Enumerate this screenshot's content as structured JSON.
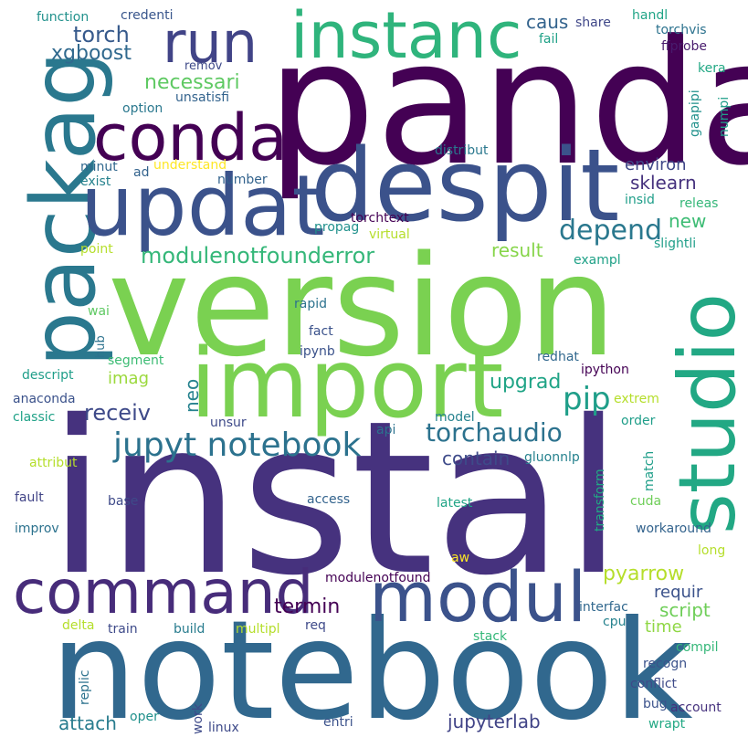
{
  "colors": {
    "background": "#ffffff",
    "palette": [
      "#440154",
      "#482878",
      "#3e4989",
      "#31688e",
      "#26828e",
      "#1f9e89",
      "#35b779",
      "#6ece58",
      "#b5de2b",
      "#fde725"
    ]
  },
  "words": [
    {
      "text": "instal",
      "color": "#46327e"
    },
    {
      "text": "version",
      "color": "#7ad151"
    },
    {
      "text": "panda",
      "color": "#440154"
    },
    {
      "text": "notebook",
      "color": "#31688e"
    },
    {
      "text": "despit",
      "color": "#3b528b"
    },
    {
      "text": "import",
      "color": "#7ad151"
    },
    {
      "text": "packag",
      "color": "#2a788e"
    },
    {
      "text": "updat",
      "color": "#3b528b"
    },
    {
      "text": "studio",
      "color": "#22a884"
    },
    {
      "text": "command",
      "color": "#472c7a"
    },
    {
      "text": "modul",
      "color": "#3b528b"
    },
    {
      "text": "instanc",
      "color": "#2fb47c"
    },
    {
      "text": "conda",
      "color": "#440154"
    },
    {
      "text": "run",
      "color": "#414487"
    },
    {
      "text": "jupyt notebook",
      "color": "#2c728e"
    },
    {
      "text": "pip",
      "color": "#1f9e89"
    },
    {
      "text": "depend",
      "color": "#2a788e"
    },
    {
      "text": "torchaudio",
      "color": "#2c728e"
    },
    {
      "text": "modulenotfounderror",
      "color": "#35b779"
    },
    {
      "text": "torch",
      "color": "#375a8c"
    },
    {
      "text": "xgboost",
      "color": "#30698e"
    },
    {
      "text": "necessari",
      "color": "#5ec962"
    },
    {
      "text": "pyarrow",
      "color": "#b5de2b"
    },
    {
      "text": "receiv",
      "color": "#3e4a89"
    },
    {
      "text": "termin",
      "color": "#440154"
    },
    {
      "text": "upgrad",
      "color": "#20a486"
    },
    {
      "text": "contain",
      "color": "#3e4a89"
    },
    {
      "text": "jupyterlab",
      "color": "#414487"
    },
    {
      "text": "attach",
      "color": "#287c8e"
    },
    {
      "text": "environ",
      "color": "#3f4788"
    },
    {
      "text": "sklearn",
      "color": "#46327e"
    },
    {
      "text": "script",
      "color": "#6ece58"
    },
    {
      "text": "result",
      "color": "#86d549"
    },
    {
      "text": "caus",
      "color": "#33638d"
    },
    {
      "text": "new",
      "color": "#3dbc74"
    },
    {
      "text": "time",
      "color": "#8fd744"
    },
    {
      "text": "requir",
      "color": "#3b528b"
    },
    {
      "text": "imag",
      "color": "#9bd93c"
    },
    {
      "text": "neo",
      "color": "#26828e"
    },
    {
      "text": "torchvis",
      "color": "#2c728e"
    },
    {
      "text": "ffprobe",
      "color": "#481b6d"
    },
    {
      "text": "handl",
      "color": "#20a486"
    },
    {
      "text": "share",
      "color": "#3f4788"
    },
    {
      "text": "fail",
      "color": "#1fa187"
    },
    {
      "text": "kera",
      "color": "#22a884"
    },
    {
      "text": "numpi",
      "color": "#1f9e89"
    },
    {
      "text": "gaapipi",
      "color": "#21918c"
    },
    {
      "text": "function",
      "color": "#21918c"
    },
    {
      "text": "credenti",
      "color": "#39568c"
    },
    {
      "text": "remov",
      "color": "#3e4a89"
    },
    {
      "text": "unsatisfi",
      "color": "#33638d"
    },
    {
      "text": "option",
      "color": "#2a788e"
    },
    {
      "text": "minut",
      "color": "#31688e"
    },
    {
      "text": "ad",
      "color": "#33638d"
    },
    {
      "text": "understand",
      "color": "#fde725"
    },
    {
      "text": "exist",
      "color": "#26828e"
    },
    {
      "text": "number",
      "color": "#33638d"
    },
    {
      "text": "distribut",
      "color": "#2a788e"
    },
    {
      "text": "insid",
      "color": "#1f9e89"
    },
    {
      "text": "releas",
      "color": "#35b779"
    },
    {
      "text": "propag",
      "color": "#21918c"
    },
    {
      "text": "torchtext",
      "color": "#440154"
    },
    {
      "text": "virtual",
      "color": "#b5de2b"
    },
    {
      "text": "point",
      "color": "#b5de2b"
    },
    {
      "text": "exampl",
      "color": "#1fa187"
    },
    {
      "text": "slightli",
      "color": "#1f9e89"
    },
    {
      "text": "wai",
      "color": "#5ec962"
    },
    {
      "text": "rapid",
      "color": "#2c728e"
    },
    {
      "text": "fact",
      "color": "#3b528b"
    },
    {
      "text": "hub",
      "color": "#2c728e"
    },
    {
      "text": "segment",
      "color": "#3dbc74"
    },
    {
      "text": "ipynb",
      "color": "#3b528b"
    },
    {
      "text": "redhat",
      "color": "#31688e"
    },
    {
      "text": "descript",
      "color": "#1f9e89"
    },
    {
      "text": "ipython",
      "color": "#440154"
    },
    {
      "text": "anaconda",
      "color": "#3b528b"
    },
    {
      "text": "classic",
      "color": "#1fa187"
    },
    {
      "text": "unsur",
      "color": "#3e4a89"
    },
    {
      "text": "model",
      "color": "#26828e"
    },
    {
      "text": "api",
      "color": "#2c728e"
    },
    {
      "text": "extrem",
      "color": "#b5de2b"
    },
    {
      "text": "order",
      "color": "#1f9e89"
    },
    {
      "text": "attribut",
      "color": "#b5de2b"
    },
    {
      "text": "gluonnlp",
      "color": "#26828e"
    },
    {
      "text": "transform",
      "color": "#22a884"
    },
    {
      "text": "match",
      "color": "#1f9e89"
    },
    {
      "text": "fault",
      "color": "#414487"
    },
    {
      "text": "base",
      "color": "#3e4a89"
    },
    {
      "text": "access",
      "color": "#33638d"
    },
    {
      "text": "latest",
      "color": "#20a486"
    },
    {
      "text": "cuda",
      "color": "#6ece58"
    },
    {
      "text": "improv",
      "color": "#2c728e"
    },
    {
      "text": "workaround",
      "color": "#33638d"
    },
    {
      "text": "long",
      "color": "#b5de2b"
    },
    {
      "text": "aw",
      "color": "#fde725"
    },
    {
      "text": "modulenotfound",
      "color": "#440154"
    },
    {
      "text": "interfac",
      "color": "#31688e"
    },
    {
      "text": "delta",
      "color": "#b5de2b"
    },
    {
      "text": "train",
      "color": "#3e4a89"
    },
    {
      "text": "build",
      "color": "#287c8e"
    },
    {
      "text": "multipl",
      "color": "#b5de2b"
    },
    {
      "text": "req",
      "color": "#3e4a89"
    },
    {
      "text": "cpu",
      "color": "#26828e"
    },
    {
      "text": "stack",
      "color": "#35b779"
    },
    {
      "text": "compil",
      "color": "#35b779"
    },
    {
      "text": "recogn",
      "color": "#3b528b"
    },
    {
      "text": "replic",
      "color": "#2c728e"
    },
    {
      "text": "conflict",
      "color": "#3e4a89"
    },
    {
      "text": "bug",
      "color": "#3b528b"
    },
    {
      "text": "account",
      "color": "#46327e"
    },
    {
      "text": "oper",
      "color": "#21918c"
    },
    {
      "text": "work",
      "color": "#3e4a89"
    },
    {
      "text": "linux",
      "color": "#3e4a89"
    },
    {
      "text": "entri",
      "color": "#3b528b"
    },
    {
      "text": "wrapt",
      "color": "#22a884"
    }
  ]
}
